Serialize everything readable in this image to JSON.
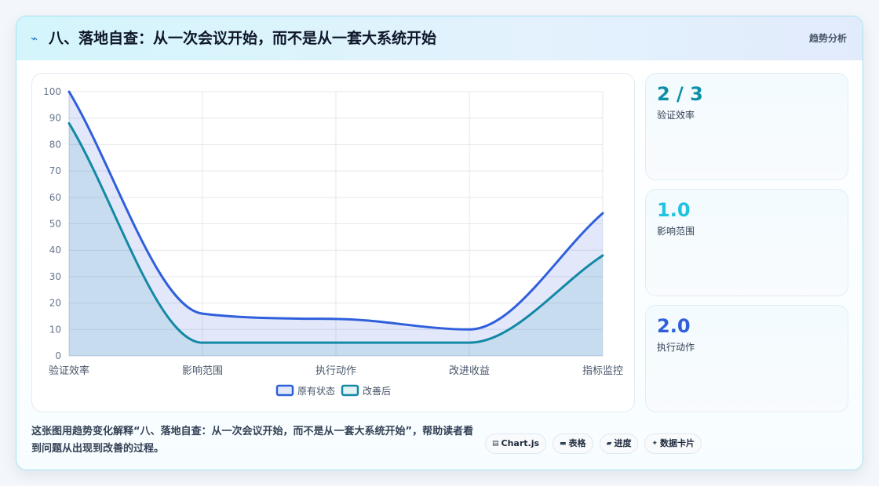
{
  "header": {
    "icon": "lightning-icon",
    "title": "八、落地自查：从一次会议开始，而不是从一套大系统开始",
    "tag": "趋势分析"
  },
  "colors": {
    "accent_teal": "#0e8fa8",
    "accent_cyan": "#22c3e0",
    "accent_blue": "#2f5fdb",
    "series_original": "#2f5fdb",
    "series_improved": "#1389a6"
  },
  "stats": [
    {
      "value": "2 / 3",
      "label": "验证效率",
      "color": "#0e8fa8"
    },
    {
      "value": "1.0",
      "label": "影响范围",
      "color": "#22c3e0"
    },
    {
      "value": "2.0",
      "label": "执行动作",
      "color": "#2f5fdb"
    }
  ],
  "caption": "这张图用趋势变化解释“八、落地自查：从一次会议开始，而不是从一套大系统开始”，帮助读者看到问题从出现到改善的过程。",
  "pills": [
    {
      "icon": "chart-icon",
      "glyph": "▤",
      "label": "Chart.js"
    },
    {
      "icon": "table-icon",
      "glyph": "▬",
      "label": "表格"
    },
    {
      "icon": "progress-icon",
      "glyph": "▰",
      "label": "进度"
    },
    {
      "icon": "sparkle-icon",
      "glyph": "✦",
      "label": "数据卡片"
    }
  ],
  "chart_data": {
    "type": "area",
    "categories": [
      "验证效率",
      "影响范围",
      "执行动作",
      "改进收益",
      "指标监控"
    ],
    "series": [
      {
        "name": "原有状态",
        "values": [
          100,
          16,
          14,
          10,
          54
        ],
        "color": "#2f5fdb"
      },
      {
        "name": "改善后",
        "values": [
          88,
          5,
          5,
          5,
          38
        ],
        "color": "#1389a6"
      }
    ],
    "ylim": [
      0,
      100
    ],
    "yticks": [
      0,
      10,
      20,
      30,
      40,
      50,
      60,
      70,
      80,
      90,
      100
    ],
    "grid": true,
    "legend": "bottom",
    "smooth": true
  }
}
